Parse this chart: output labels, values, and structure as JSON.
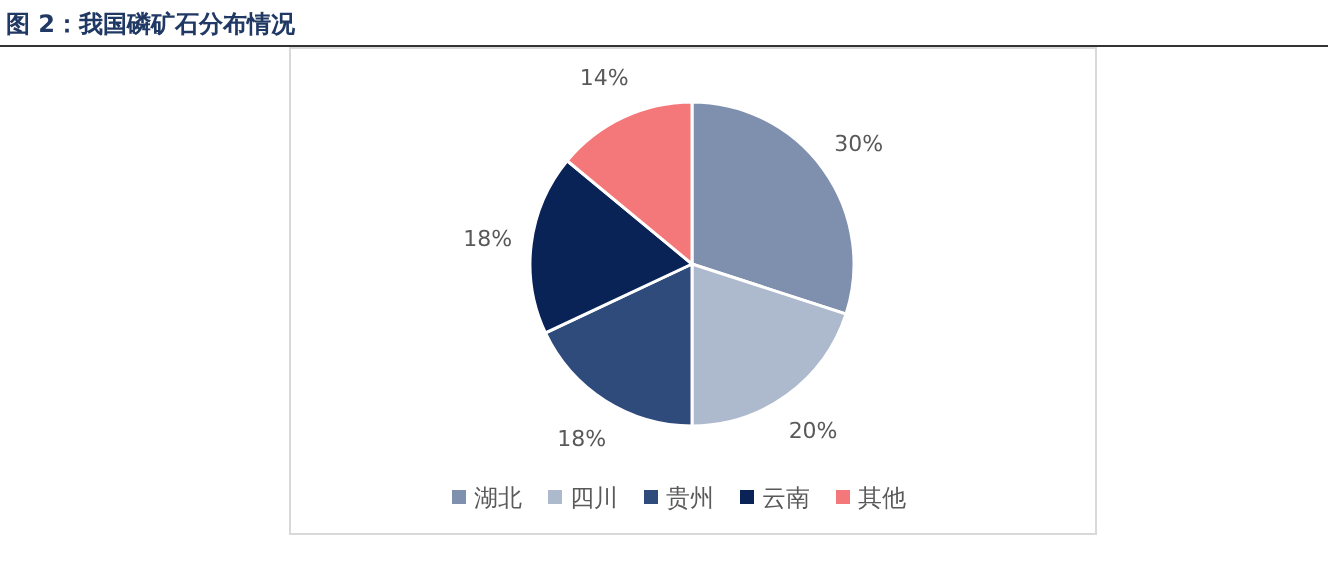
{
  "chart_data": {
    "type": "pie",
    "title": "图 2：我国磷矿石分布情况",
    "categories": [
      "湖北",
      "四川",
      "贵州",
      "云南",
      "其他"
    ],
    "values": [
      30,
      20,
      18,
      18,
      14
    ],
    "colors": [
      "#7f8fae",
      "#adb9cc",
      "#2f4b7c",
      "#0a2357",
      "#f4787a"
    ],
    "value_labels": [
      "30%",
      "20%",
      "18%",
      "18%",
      "14%"
    ],
    "legend": "bottom"
  }
}
